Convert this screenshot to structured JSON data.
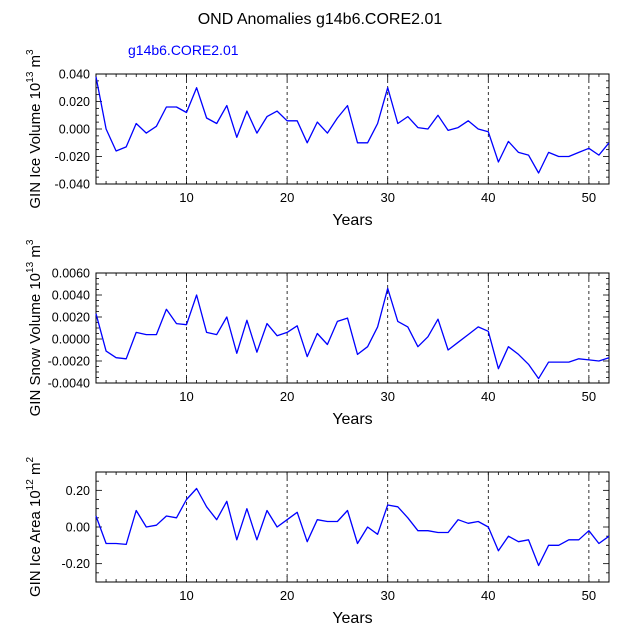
{
  "figure": {
    "title": "OND Anomalies g14b6.CORE2.01",
    "series_label": "g14b6.CORE2.01",
    "series_color": "#0000ff"
  },
  "chart_data": [
    {
      "type": "line",
      "title": "OND Anomalies g14b6.CORE2.01",
      "legend": "g14b6.CORE2.01",
      "xlabel": "Years",
      "ylabel": "GIN Ice Volume 10^13 m^3",
      "ylabel_main": "GIN Ice Volume 10",
      "ylabel_exp": "13",
      "ylabel_unit": "m",
      "ylabel_unit_exp": "3",
      "xlim": [
        1,
        52
      ],
      "ylim": [
        -0.04,
        0.04
      ],
      "xticks": [
        10,
        20,
        30,
        40,
        50
      ],
      "yticks": [
        -0.04,
        -0.02,
        0.0,
        0.02,
        0.04
      ],
      "ytick_labels": [
        "-0.040",
        "-0.020",
        "0.000",
        "0.020",
        "0.040"
      ],
      "gridlines_x": [
        10,
        20,
        30,
        40,
        50
      ],
      "x": [
        1,
        2,
        3,
        4,
        5,
        6,
        7,
        8,
        9,
        10,
        11,
        12,
        13,
        14,
        15,
        16,
        17,
        18,
        19,
        20,
        21,
        22,
        23,
        24,
        25,
        26,
        27,
        28,
        29,
        30,
        31,
        32,
        33,
        34,
        35,
        36,
        37,
        38,
        39,
        40,
        41,
        42,
        43,
        44,
        45,
        46,
        47,
        48,
        49,
        50,
        51,
        52
      ],
      "values": [
        0.038,
        0.0,
        -0.016,
        -0.013,
        0.004,
        -0.003,
        0.002,
        0.016,
        0.016,
        0.012,
        0.03,
        0.008,
        0.004,
        0.017,
        -0.006,
        0.013,
        -0.003,
        0.009,
        0.013,
        0.006,
        0.006,
        -0.01,
        0.005,
        -0.003,
        0.008,
        0.017,
        -0.01,
        -0.01,
        0.004,
        0.03,
        0.004,
        0.009,
        0.001,
        0.0,
        0.01,
        -0.001,
        0.001,
        0.006,
        0.0,
        -0.002,
        -0.024,
        -0.009,
        -0.017,
        -0.019,
        -0.032,
        -0.017,
        -0.02,
        -0.02,
        -0.017,
        -0.014,
        -0.019,
        -0.01
      ]
    },
    {
      "type": "line",
      "xlabel": "Years",
      "ylabel": "GIN Snow Volume 10^13 m^3",
      "ylabel_main": "GIN Snow Volume 10",
      "ylabel_exp": "13",
      "ylabel_unit": "m",
      "ylabel_unit_exp": "3",
      "xlim": [
        1,
        52
      ],
      "ylim": [
        -0.004,
        0.006
      ],
      "xticks": [
        10,
        20,
        30,
        40,
        50
      ],
      "yticks": [
        -0.004,
        -0.002,
        0.0,
        0.002,
        0.004,
        0.006
      ],
      "ytick_labels": [
        "-0.0040",
        "-0.0020",
        "0.0000",
        "0.0020",
        "0.0040",
        "0.0060"
      ],
      "gridlines_x": [
        10,
        20,
        30,
        40,
        50
      ],
      "x": [
        1,
        2,
        3,
        4,
        5,
        6,
        7,
        8,
        9,
        10,
        11,
        12,
        13,
        14,
        15,
        16,
        17,
        18,
        19,
        20,
        21,
        22,
        23,
        24,
        25,
        26,
        27,
        28,
        29,
        30,
        31,
        32,
        33,
        34,
        35,
        36,
        37,
        38,
        39,
        40,
        41,
        42,
        43,
        44,
        45,
        46,
        47,
        48,
        49,
        50,
        51,
        52
      ],
      "values": [
        0.0023,
        -0.0011,
        -0.0017,
        -0.0018,
        0.0006,
        0.0004,
        0.0004,
        0.0027,
        0.0014,
        0.0013,
        0.004,
        0.0006,
        0.0004,
        0.002,
        -0.0013,
        0.0017,
        -0.0012,
        0.0014,
        0.0003,
        0.0006,
        0.0012,
        -0.0016,
        0.0005,
        -0.0005,
        0.0016,
        0.0019,
        -0.0014,
        -0.0007,
        0.0011,
        0.0046,
        0.0016,
        0.0011,
        -0.0007,
        0.0002,
        0.0018,
        -0.001,
        -0.0003,
        0.0004,
        0.0011,
        0.0007,
        -0.0027,
        -0.0007,
        -0.0014,
        -0.0023,
        -0.0036,
        -0.0021,
        -0.0021,
        -0.0021,
        -0.0018,
        -0.0019,
        -0.002,
        -0.0017
      ]
    },
    {
      "type": "line",
      "xlabel": "Years",
      "ylabel": "GIN Ice Area 10^12 m^2",
      "ylabel_main": "GIN Ice Area 10",
      "ylabel_exp": "12",
      "ylabel_unit": "m",
      "ylabel_unit_exp": "2",
      "xlim": [
        1,
        52
      ],
      "ylim": [
        -0.3,
        0.3
      ],
      "xticks": [
        10,
        20,
        30,
        40,
        50
      ],
      "yticks": [
        -0.2,
        0.0,
        0.2
      ],
      "ytick_labels": [
        "-0.20",
        "0.00",
        "0.20"
      ],
      "gridlines_x": [
        10,
        20,
        30,
        40,
        50
      ],
      "x": [
        1,
        2,
        3,
        4,
        5,
        6,
        7,
        8,
        9,
        10,
        11,
        12,
        13,
        14,
        15,
        16,
        17,
        18,
        19,
        20,
        21,
        22,
        23,
        24,
        25,
        26,
        27,
        28,
        29,
        30,
        31,
        32,
        33,
        34,
        35,
        36,
        37,
        38,
        39,
        40,
        41,
        42,
        43,
        44,
        45,
        46,
        47,
        48,
        49,
        50,
        51,
        52
      ],
      "values": [
        0.06,
        -0.09,
        -0.09,
        -0.095,
        0.09,
        0.0,
        0.01,
        0.06,
        0.05,
        0.15,
        0.21,
        0.11,
        0.04,
        0.14,
        -0.07,
        0.1,
        -0.07,
        0.09,
        0.0,
        0.04,
        0.08,
        -0.08,
        0.04,
        0.03,
        0.03,
        0.09,
        -0.09,
        0.0,
        -0.04,
        0.12,
        0.11,
        0.05,
        -0.02,
        -0.02,
        -0.03,
        -0.03,
        0.04,
        0.02,
        0.03,
        0.0,
        -0.13,
        -0.05,
        -0.08,
        -0.07,
        -0.21,
        -0.1,
        -0.1,
        -0.07,
        -0.07,
        -0.02,
        -0.09,
        -0.05
      ]
    }
  ]
}
